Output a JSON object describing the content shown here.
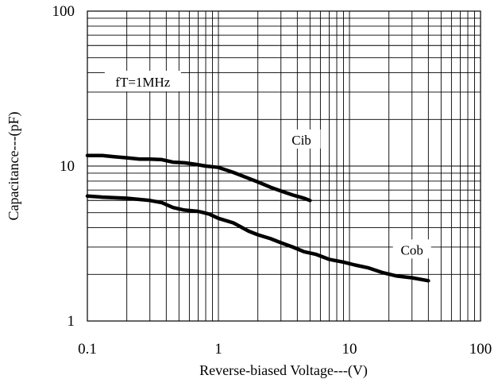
{
  "chart_data": {
    "type": "line",
    "x_scale": "log",
    "y_scale": "log",
    "xlim": [
      0.1,
      100
    ],
    "ylim": [
      1,
      100
    ],
    "grid": true,
    "xlabel": "Reverse-biased Voltage---(V)",
    "ylabel": "Capacitance---(pF)",
    "x_tick_labels": [
      "0.1",
      "1",
      "10",
      "100"
    ],
    "x_tick_values": [
      0.1,
      1,
      10,
      100
    ],
    "y_tick_labels": [
      "1",
      "10",
      "100"
    ],
    "y_tick_values": [
      1,
      10,
      100
    ],
    "annotations": [
      {
        "text": "fT=1MHz"
      }
    ],
    "series": [
      {
        "name": "Cib",
        "x": [
          0.1,
          0.13,
          0.16,
          0.2,
          0.25,
          0.3,
          0.37,
          0.45,
          0.55,
          0.65,
          0.8,
          1.0,
          1.3,
          1.6,
          2.0,
          2.5,
          3.0,
          3.7,
          4.5,
          5.0
        ],
        "y": [
          11.7,
          11.7,
          11.5,
          11.3,
          11.1,
          11.1,
          11.0,
          10.6,
          10.5,
          10.3,
          10.0,
          9.8,
          9.1,
          8.5,
          7.9,
          7.3,
          6.9,
          6.5,
          6.2,
          6.0
        ]
      },
      {
        "name": "Cob",
        "x": [
          0.1,
          0.13,
          0.2,
          0.3,
          0.37,
          0.45,
          0.55,
          0.7,
          0.85,
          1.0,
          1.3,
          1.7,
          2.0,
          2.5,
          3.0,
          3.7,
          4.5,
          5.5,
          7.0,
          9.0,
          11.0,
          14.0,
          18.0,
          23.0,
          30.0,
          40.0
        ],
        "y": [
          6.4,
          6.3,
          6.2,
          6.0,
          5.8,
          5.4,
          5.2,
          5.1,
          4.9,
          4.6,
          4.3,
          3.8,
          3.6,
          3.4,
          3.2,
          3.0,
          2.8,
          2.7,
          2.5,
          2.4,
          2.3,
          2.2,
          2.05,
          1.95,
          1.9,
          1.82
        ]
      }
    ]
  }
}
